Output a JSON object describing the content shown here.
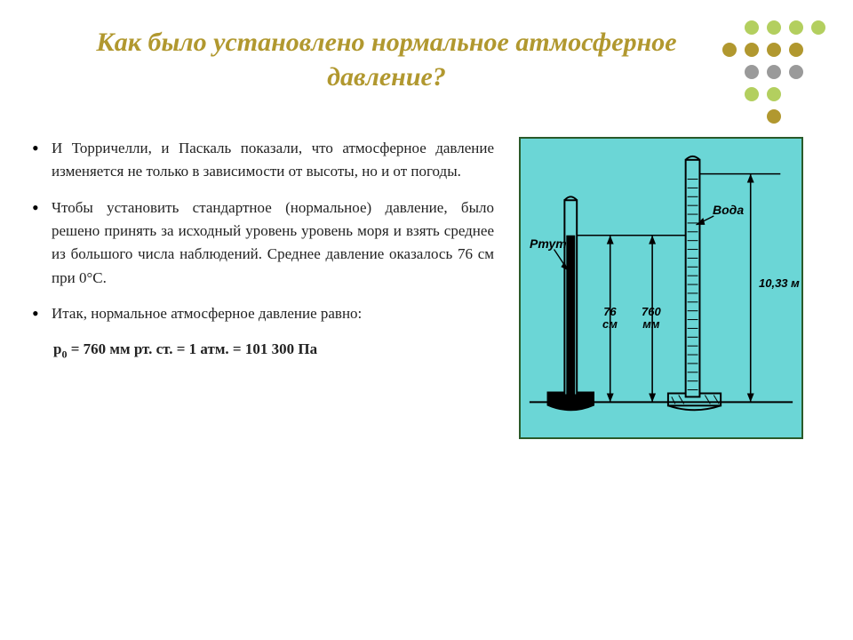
{
  "decor": {
    "dot_pattern": [
      [
        0,
        1,
        1,
        1,
        1
      ],
      [
        1,
        1,
        1,
        1,
        0
      ],
      [
        0,
        1,
        1,
        1,
        0
      ],
      [
        0,
        1,
        1,
        0,
        0
      ],
      [
        0,
        0,
        1,
        0,
        0
      ]
    ],
    "dot_colors": {
      "row0": "#b3cf5f",
      "row1": "#b1982f",
      "row2": "#9a9a9a",
      "row3": "#b3cf5f",
      "row4": "#b1982f"
    }
  },
  "title": "Как было установлено нормальное атмосферное давление?",
  "title_color": "#b1982f",
  "paragraphs": [
    "И Торричелли, и Паскаль показали, что атмосферное давление изменяется не только в зависимости от высоты, но и от погоды.",
    "Чтобы установить стандартное (нор­мальное) давление, было решено при­нять за исходный уровень уровень моря и взять среднее из большого числа наб­людений. Среднее давление оказалось 76 см при 0°С.",
    "Итак, нормальное атмосферное давле­ние равно:"
  ],
  "formula": "p₀ = 760 мм рт. ст. = 1 атм. = 101 300 Па",
  "figure": {
    "bg_color": "#6bd6d6",
    "border_color": "#2a5a2a",
    "label_mercury": "Ртуть",
    "label_water": "Вода",
    "dim_76cm_a": "76",
    "dim_76cm_b": "см",
    "dim_760mm_a": "760",
    "dim_760mm_b": "мм",
    "dim_1033m": "10,33 м"
  }
}
